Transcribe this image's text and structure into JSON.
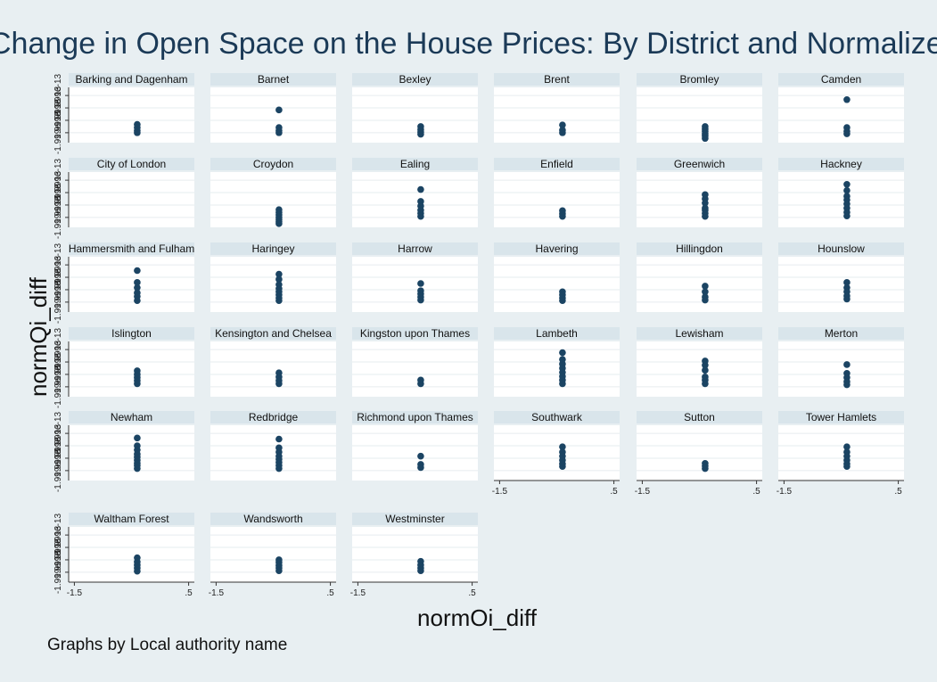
{
  "chart_data": {
    "type": "scatter",
    "title": "Change in Open Space on the House Prices: By District and Normalized",
    "xlabel": "normOi_diff",
    "ylabel": "normQi_diff",
    "note": "Graphs by Local authority name",
    "xticks": [
      "-1.5",
      ".5"
    ],
    "yticks": [
      "-1.999e-13",
      "-1.999e-13",
      "-1.999e-13",
      "-1.999e-13"
    ],
    "xlim": [
      -1.6,
      0.6
    ],
    "ylim": [
      0,
      1
    ],
    "colors": {
      "marker": "#1b4463",
      "background": "#e8eff2",
      "panel": "#ffffff",
      "strip": "#d9e5eb"
    },
    "x_common": -0.4,
    "panels": [
      {
        "name": "Barking and Dagenham",
        "y": [
          0.3,
          0.24,
          0.18,
          0.14
        ]
      },
      {
        "name": "Barnet",
        "y": [
          0.58,
          0.24,
          0.18,
          0.14
        ]
      },
      {
        "name": "Bexley",
        "y": [
          0.26,
          0.2,
          0.15,
          0.11
        ]
      },
      {
        "name": "Brent",
        "y": [
          0.29,
          0.19,
          0.14
        ]
      },
      {
        "name": "Bromley",
        "y": [
          0.26,
          0.21,
          0.17,
          0.12,
          0.08,
          0.03
        ]
      },
      {
        "name": "Camden",
        "y": [
          0.78,
          0.24,
          0.17,
          0.12
        ]
      },
      {
        "name": "City of London",
        "y": []
      },
      {
        "name": "Croydon",
        "y": [
          0.29,
          0.24,
          0.19,
          0.14,
          0.1,
          0.06,
          0.02
        ]
      },
      {
        "name": "Ealing",
        "y": [
          0.68,
          0.45,
          0.36,
          0.28,
          0.22,
          0.16
        ]
      },
      {
        "name": "Enfield",
        "y": [
          0.27,
          0.21,
          0.16
        ]
      },
      {
        "name": "Greenwich",
        "y": [
          0.58,
          0.5,
          0.42,
          0.32,
          0.28,
          0.22,
          0.16
        ]
      },
      {
        "name": "Hackney",
        "y": [
          0.78,
          0.66,
          0.55,
          0.48,
          0.4,
          0.32,
          0.24,
          0.17
        ]
      },
      {
        "name": "Hammersmith and Fulham",
        "y": [
          0.75,
          0.52,
          0.42,
          0.32,
          0.25,
          0.17
        ]
      },
      {
        "name": "Haringey",
        "y": [
          0.68,
          0.58,
          0.48,
          0.4,
          0.34,
          0.28,
          0.22,
          0.17
        ]
      },
      {
        "name": "Harrow",
        "y": [
          0.5,
          0.36,
          0.3,
          0.24,
          0.18
        ]
      },
      {
        "name": "Havering",
        "y": [
          0.34,
          0.28,
          0.22,
          0.17
        ]
      },
      {
        "name": "Hillingdon",
        "y": [
          0.45,
          0.34,
          0.24,
          0.18
        ]
      },
      {
        "name": "Hounslow",
        "y": [
          0.52,
          0.42,
          0.34,
          0.26,
          0.2
        ]
      },
      {
        "name": "Islington",
        "y": [
          0.45,
          0.38,
          0.32,
          0.26,
          0.2
        ]
      },
      {
        "name": "Kensington and Chelsea",
        "y": [
          0.41,
          0.33,
          0.26,
          0.2
        ]
      },
      {
        "name": "Kingston upon Thames",
        "y": [
          0.27,
          0.2
        ]
      },
      {
        "name": "Lambeth",
        "y": [
          0.8,
          0.67,
          0.58,
          0.5,
          0.42,
          0.34,
          0.27,
          0.2
        ]
      },
      {
        "name": "Lewisham",
        "y": [
          0.64,
          0.56,
          0.46,
          0.33,
          0.27,
          0.2
        ]
      },
      {
        "name": "Merton",
        "y": [
          0.57,
          0.4,
          0.32,
          0.24,
          0.18
        ]
      },
      {
        "name": "Newham",
        "y": [
          0.77,
          0.62,
          0.54,
          0.46,
          0.4,
          0.34,
          0.28,
          0.24,
          0.18
        ]
      },
      {
        "name": "Redbridge",
        "y": [
          0.75,
          0.58,
          0.5,
          0.42,
          0.36,
          0.3,
          0.24,
          0.18
        ]
      },
      {
        "name": "Richmond upon Thames",
        "y": [
          0.42,
          0.26,
          0.2
        ]
      },
      {
        "name": "Southwark",
        "y": [
          0.6,
          0.5,
          0.42,
          0.34,
          0.27,
          0.22
        ]
      },
      {
        "name": "Sutton",
        "y": [
          0.28,
          0.23,
          0.18
        ]
      },
      {
        "name": "Tower Hamlets",
        "y": [
          0.6,
          0.5,
          0.42,
          0.34,
          0.27,
          0.22
        ]
      },
      {
        "name": "Waltham Forest",
        "y": [
          0.42,
          0.34,
          0.28,
          0.22,
          0.16
        ]
      },
      {
        "name": "Wandsworth",
        "y": [
          0.38,
          0.33,
          0.27,
          0.22,
          0.17
        ]
      },
      {
        "name": "Westminster",
        "y": [
          0.35,
          0.28,
          0.22,
          0.17
        ]
      }
    ]
  }
}
